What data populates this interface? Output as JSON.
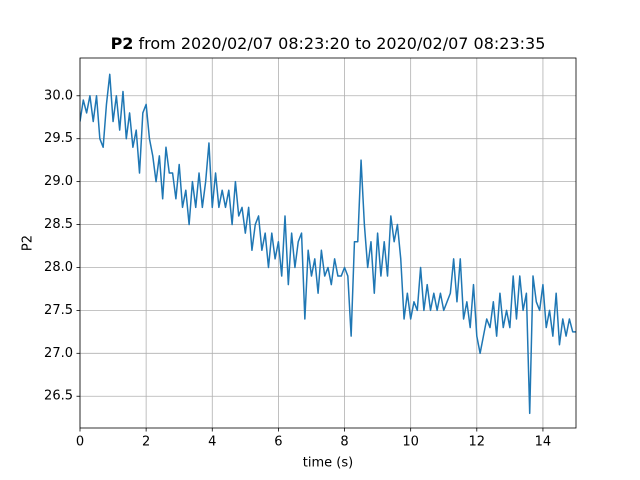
{
  "chart_data": {
    "type": "line",
    "title_bold": "P2",
    "title": "from 2020/02/07 08:23:20 to 2020/02/07 08:23:35",
    "xlabel": "time (s)",
    "ylabel": "P2",
    "x": [
      0,
      0.1,
      0.2,
      0.3,
      0.4,
      0.5,
      0.6,
      0.7,
      0.8,
      0.9,
      1.0,
      1.1,
      1.2,
      1.3,
      1.4,
      1.5,
      1.6,
      1.7,
      1.8,
      1.9,
      2.0,
      2.1,
      2.2,
      2.3,
      2.4,
      2.5,
      2.6,
      2.7,
      2.8,
      2.9,
      3.0,
      3.1,
      3.2,
      3.3,
      3.4,
      3.5,
      3.6,
      3.7,
      3.8,
      3.9,
      4.0,
      4.1,
      4.2,
      4.3,
      4.4,
      4.5,
      4.6,
      4.7,
      4.8,
      4.9,
      5.0,
      5.1,
      5.2,
      5.3,
      5.4,
      5.5,
      5.6,
      5.7,
      5.8,
      5.9,
      6.0,
      6.1,
      6.2,
      6.3,
      6.4,
      6.5,
      6.6,
      6.7,
      6.8,
      6.9,
      7.0,
      7.1,
      7.2,
      7.3,
      7.4,
      7.5,
      7.6,
      7.7,
      7.8,
      7.9,
      8.0,
      8.1,
      8.2,
      8.3,
      8.4,
      8.5,
      8.6,
      8.7,
      8.8,
      8.9,
      9.0,
      9.1,
      9.2,
      9.3,
      9.4,
      9.5,
      9.6,
      9.7,
      9.8,
      9.9,
      10.0,
      10.1,
      10.2,
      10.3,
      10.4,
      10.5,
      10.6,
      10.7,
      10.8,
      10.9,
      11.0,
      11.1,
      11.2,
      11.3,
      11.4,
      11.5,
      11.6,
      11.7,
      11.8,
      11.9,
      12.0,
      12.1,
      12.2,
      12.3,
      12.4,
      12.5,
      12.6,
      12.7,
      12.8,
      12.9,
      13.0,
      13.1,
      13.2,
      13.3,
      13.4,
      13.5,
      13.6,
      13.7,
      13.8,
      13.9,
      14.0,
      14.1,
      14.2,
      14.3,
      14.4,
      14.5,
      14.6,
      14.7,
      14.8,
      14.9,
      15.0
    ],
    "series": [
      {
        "name": "P2",
        "color": "#1f77b4",
        "values": [
          29.7,
          29.95,
          29.8,
          30.0,
          29.7,
          30.0,
          29.5,
          29.4,
          29.9,
          30.25,
          29.7,
          30.0,
          29.6,
          30.05,
          29.5,
          29.8,
          29.4,
          29.6,
          29.1,
          29.8,
          29.9,
          29.5,
          29.3,
          29.0,
          29.3,
          28.8,
          29.4,
          29.1,
          29.1,
          28.8,
          29.2,
          28.7,
          28.9,
          28.5,
          29.0,
          28.7,
          29.1,
          28.7,
          29.0,
          29.45,
          28.7,
          29.1,
          28.7,
          28.9,
          28.7,
          28.9,
          28.5,
          29.0,
          28.6,
          28.7,
          28.4,
          28.7,
          28.2,
          28.5,
          28.6,
          28.2,
          28.4,
          28.0,
          28.4,
          28.1,
          28.3,
          27.9,
          28.6,
          27.8,
          28.4,
          28.0,
          28.3,
          28.4,
          27.4,
          28.2,
          27.9,
          28.1,
          27.7,
          28.2,
          27.9,
          28.0,
          27.8,
          28.1,
          27.9,
          27.9,
          28.0,
          27.9,
          27.2,
          28.3,
          28.3,
          29.25,
          28.5,
          28.0,
          28.3,
          27.7,
          28.4,
          27.9,
          28.3,
          27.9,
          28.6,
          28.3,
          28.5,
          28.1,
          27.4,
          27.7,
          27.4,
          27.6,
          27.5,
          28.0,
          27.5,
          27.8,
          27.5,
          27.7,
          27.5,
          27.7,
          27.5,
          27.6,
          27.7,
          28.1,
          27.6,
          28.1,
          27.4,
          27.6,
          27.3,
          27.8,
          27.2,
          27.0,
          27.2,
          27.4,
          27.3,
          27.6,
          27.2,
          27.7,
          27.3,
          27.5,
          27.3,
          27.9,
          27.4,
          27.9,
          27.5,
          27.7,
          26.3,
          27.9,
          27.6,
          27.5,
          27.8,
          27.3,
          27.5,
          27.2,
          27.7,
          27.1,
          27.4,
          27.2,
          27.4,
          27.25,
          27.25
        ]
      }
    ],
    "xlim": [
      0,
      15.0
    ],
    "ylim": [
      26.13,
      30.44
    ],
    "xticks": [
      0,
      2,
      4,
      6,
      8,
      10,
      12,
      14
    ],
    "yticks": [
      26.5,
      {
        "value": 27,
        "label": "27.0"
      },
      27.5,
      {
        "value": 28,
        "label": "28.0"
      },
      28.5,
      {
        "value": 29,
        "label": "29.0"
      },
      29.5,
      {
        "value": 30,
        "label": "30.0"
      }
    ],
    "grid": true
  }
}
